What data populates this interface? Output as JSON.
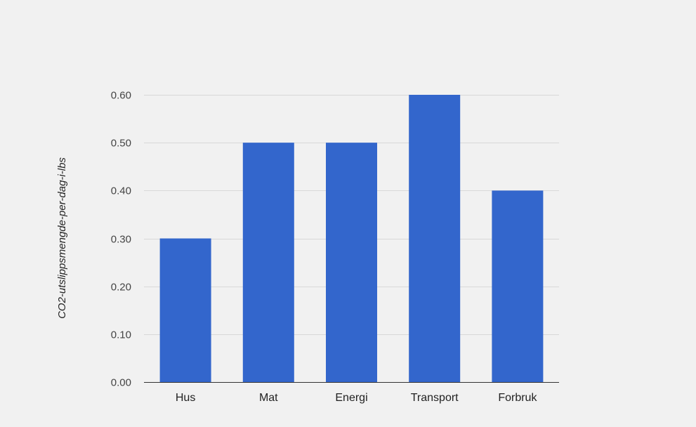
{
  "chart_data": {
    "type": "bar",
    "title": "",
    "xlabel": "",
    "ylabel": "CO2-utslippsmengde-per-dag-i-lbs",
    "categories": [
      "Hus",
      "Mat",
      "Energi",
      "Transport",
      "Forbruk"
    ],
    "values": [
      0.3,
      0.5,
      0.5,
      0.6,
      0.4
    ],
    "ylim": [
      0,
      0.6
    ],
    "yticks": [
      "0.00",
      "0.10",
      "0.20",
      "0.30",
      "0.40",
      "0.50",
      "0.60"
    ],
    "grid": true,
    "legend": "none",
    "colors": {
      "bar": "#3366cc",
      "grid": "#d8d8d8",
      "axis": "#333333",
      "background": "#f1f1f1"
    }
  }
}
